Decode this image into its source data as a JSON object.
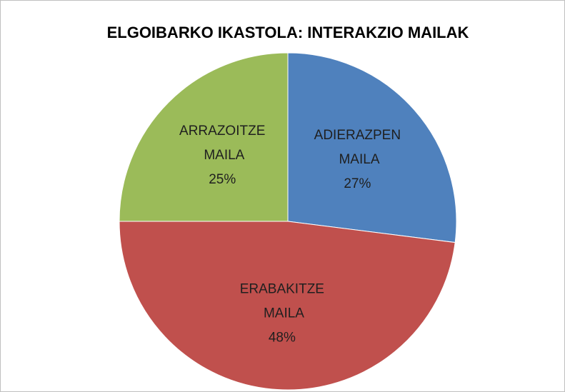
{
  "chart_data": {
    "type": "pie",
    "title": "ELGOIBARKO IKASTOLA: INTERAKZIO MAILAK",
    "categories": [
      "ADIERAZPEN MAILA",
      "ERABAKITZE MAILA",
      "ARRAZOITZE MAILA"
    ],
    "values": [
      27,
      48,
      25
    ],
    "value_labels": [
      "27%",
      "48%",
      "25%"
    ],
    "colors": [
      "#4f81bd",
      "#c0504d",
      "#9bbb59"
    ]
  }
}
